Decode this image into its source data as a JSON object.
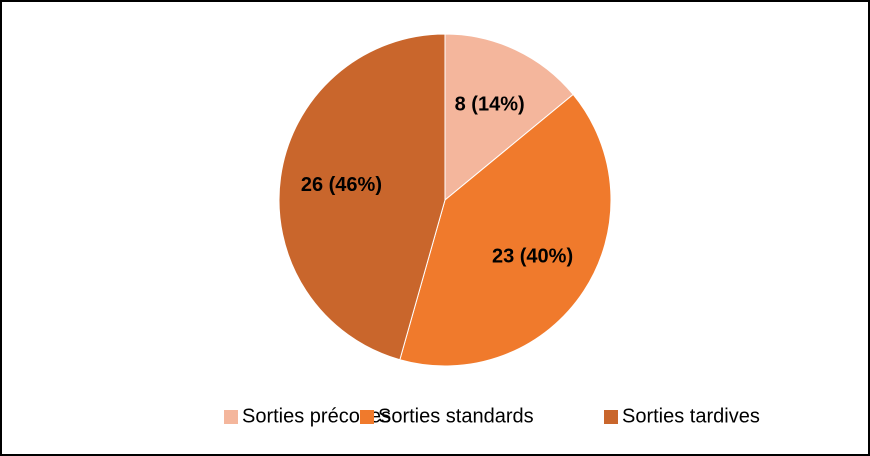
{
  "chart_data": {
    "type": "pie",
    "categories": [
      "Sorties précoces",
      "Sorties standards",
      "Sorties tardives"
    ],
    "values": [
      8,
      23,
      26
    ],
    "value_labels": [
      "8 (14%)",
      "23 (40%)",
      "26 (46%)"
    ],
    "colors": [
      "#f4b69c",
      "#f07a2c",
      "#c9662c"
    ],
    "legend": "bottom"
  }
}
